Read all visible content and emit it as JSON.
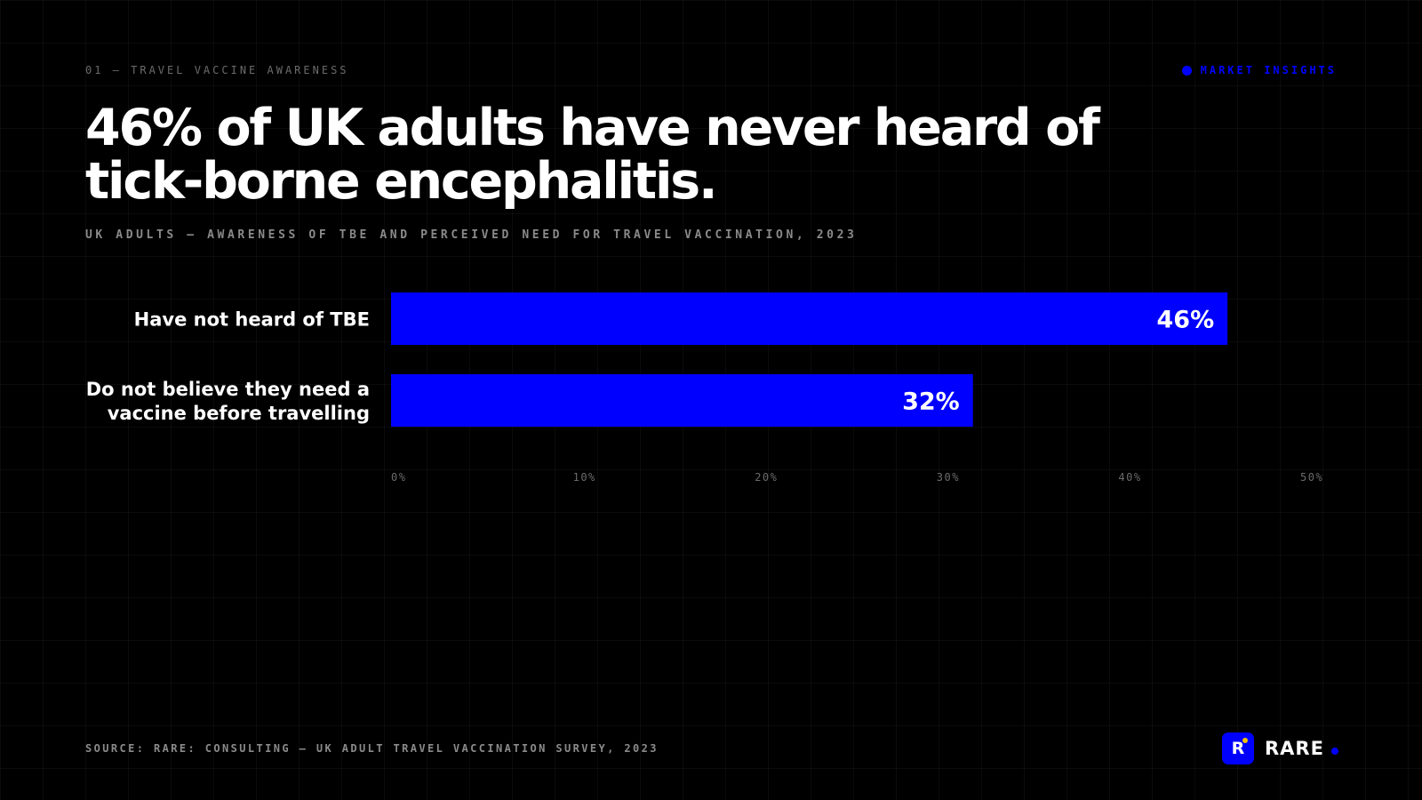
{
  "eyebrow": "01 — TRAVEL VACCINE AWARENESS",
  "badge": {
    "label": "MARKET INSIGHTS",
    "color": "#0000ff"
  },
  "headline": "46% of UK adults have never heard of tick-borne encephalitis.",
  "subtitle": "UK ADULTS — AWARENESS OF TBE AND PERCEIVED NEED FOR TRAVEL VACCINATION, 2023",
  "source": "SOURCE: RARE: CONSULTING — UK ADULT TRAVEL VACCINATION SURVEY, 2023",
  "brand": {
    "mark": "R",
    "name": "RARE",
    "accent": "#0000ff",
    "spark": "#f5c400"
  },
  "chart_data": {
    "type": "bar",
    "orientation": "horizontal",
    "categories": [
      [
        "Have not heard of TBE"
      ],
      [
        "Do not believe they need a",
        "vaccine before travelling"
      ]
    ],
    "values": [
      46,
      32
    ],
    "value_labels": [
      "46%",
      "32%"
    ],
    "xlim": [
      0,
      50
    ],
    "xticks": [
      0,
      10,
      20,
      30,
      40,
      50
    ],
    "xtick_labels": [
      "0%",
      "10%",
      "20%",
      "30%",
      "40%",
      "50%"
    ],
    "bar_color": "#0000ff",
    "grid": true
  }
}
